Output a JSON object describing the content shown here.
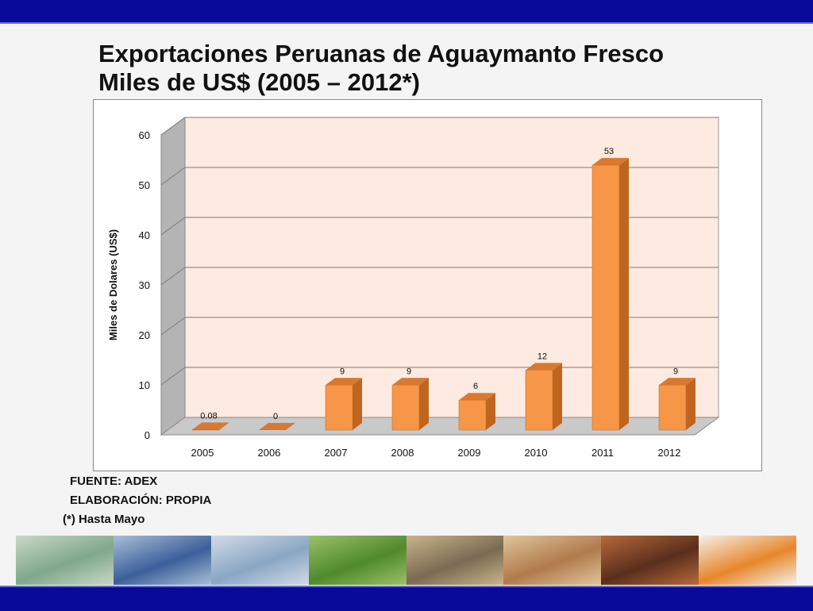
{
  "slide": {
    "title_line1": "Exportaciones Peruanas de Aguaymanto Fresco",
    "title_line2": "Miles de US$ (2005 – 2012*)",
    "source": "FUENTE: ADEX",
    "elaboration": "ELABORACIÓN: PROPIA",
    "footnote": "(*) Hasta Mayo"
  },
  "colors": {
    "band": "#0a0a9a",
    "plot_bg": "#fdeae0",
    "bar_front": "#f79646",
    "bar_side": "#c0651e",
    "bar_top": "#d9782f"
  },
  "chart_data": {
    "type": "bar",
    "categories": [
      "2005",
      "2006",
      "2007",
      "2008",
      "2009",
      "2010",
      "2011",
      "2012"
    ],
    "values": [
      0.08,
      0,
      9,
      9,
      6,
      12,
      53,
      9
    ],
    "value_labels": [
      "0.08",
      "0",
      "9",
      "9",
      "6",
      "12",
      "53",
      "9"
    ],
    "ylabel": "Miles de Dolares (US$)",
    "xlabel": "",
    "ylim": [
      0,
      60
    ],
    "yticks": [
      "0",
      "10",
      "20",
      "30",
      "40",
      "50",
      "60"
    ],
    "grid": true,
    "legend": "none"
  },
  "photos": [
    {
      "name": "money-photo",
      "c1": "#7fa88a",
      "c2": "#c9d8c7"
    },
    {
      "name": "globe-photo",
      "c1": "#3c5f9a",
      "c2": "#a8bfd8"
    },
    {
      "name": "port-ship-photo",
      "c1": "#8aa6c4",
      "c2": "#d2dbe6"
    },
    {
      "name": "crop-field-photo",
      "c1": "#4f8a2c",
      "c2": "#9cc06a"
    },
    {
      "name": "market-workers-photo",
      "c1": "#7a6a52",
      "c2": "#c9b48a"
    },
    {
      "name": "vicunas-photo",
      "c1": "#b07a4c",
      "c2": "#e0c59a"
    },
    {
      "name": "cacao-beans-photo",
      "c1": "#5a2e1c",
      "c2": "#b56a3a"
    },
    {
      "name": "aguaymanto-fruits-photo",
      "c1": "#e8862a",
      "c2": "#f3f0e8"
    }
  ]
}
